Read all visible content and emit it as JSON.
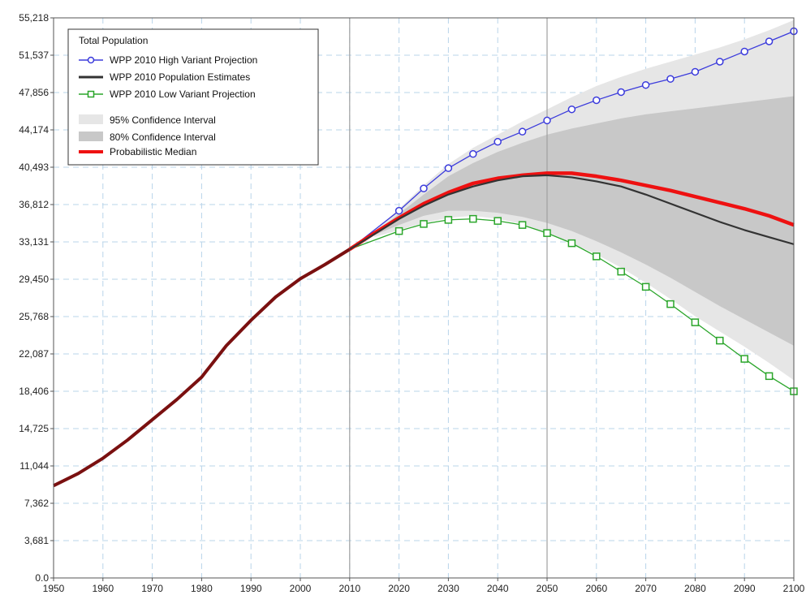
{
  "chart_data": {
    "type": "line",
    "legend": {
      "title": "Total Population",
      "placement": "top-left",
      "entries": [
        {
          "key": "high",
          "label": "WPP 2010 High Variant Projection",
          "color": "#3b3bdc",
          "marker": "circle"
        },
        {
          "key": "estimates",
          "label": "WPP 2010 Population Estimates",
          "color": "#333333",
          "marker": "none"
        },
        {
          "key": "low",
          "label": "WPP 2010 Low Variant Projection",
          "color": "#2aa52a",
          "marker": "square"
        },
        {
          "key": "ci95",
          "label": "95% Confidence Interval",
          "color": "#e6e6e6",
          "marker": "band"
        },
        {
          "key": "ci80",
          "label": "80% Confidence Interval",
          "color": "#c8c8c8",
          "marker": "band"
        },
        {
          "key": "median",
          "label": "Probabilistic Median",
          "color": "#ee1111",
          "marker": "none"
        }
      ]
    },
    "xlim": [
      1950,
      2100
    ],
    "ylim": [
      0,
      55218
    ],
    "x_ticks": [
      "1950",
      "1960",
      "1970",
      "1980",
      "1990",
      "2000",
      "2010",
      "2020",
      "2030",
      "2040",
      "2050",
      "2060",
      "2070",
      "2080",
      "2090",
      "2100"
    ],
    "y_ticks": [
      "0.0",
      "3,681",
      "7,362",
      "11,044",
      "14,725",
      "18,406",
      "22,087",
      "25,768",
      "29,450",
      "33,131",
      "36,812",
      "40,493",
      "44,174",
      "47,856",
      "51,537",
      "55,218"
    ],
    "grid": true,
    "reference_lines_x": [
      2010,
      2050
    ],
    "historical": {
      "x": [
        1950,
        1955,
        1960,
        1965,
        1970,
        1975,
        1980,
        1985,
        1990,
        1995,
        2000,
        2005,
        2010
      ],
      "y": [
        9100,
        10300,
        11800,
        13600,
        15600,
        17600,
        19800,
        22900,
        25400,
        27700,
        29500,
        30900,
        32400
      ]
    },
    "series": [
      {
        "key": "high",
        "name": "WPP 2010 High Variant Projection",
        "x": [
          2020,
          2025,
          2030,
          2035,
          2040,
          2045,
          2050,
          2055,
          2060,
          2065,
          2070,
          2075,
          2080,
          2085,
          2090,
          2095,
          2100
        ],
        "y": [
          36200,
          38400,
          40400,
          41800,
          43000,
          44000,
          45100,
          46200,
          47100,
          47900,
          48600,
          49200,
          49900,
          50900,
          51900,
          52900,
          53900
        ]
      },
      {
        "key": "low",
        "name": "WPP 2010 Low Variant Projection",
        "x": [
          2020,
          2025,
          2030,
          2035,
          2040,
          2045,
          2050,
          2055,
          2060,
          2065,
          2070,
          2075,
          2080,
          2085,
          2090,
          2095,
          2100
        ],
        "y": [
          34200,
          34900,
          35300,
          35400,
          35200,
          34800,
          34000,
          33000,
          31700,
          30200,
          28700,
          27000,
          25200,
          23400,
          21600,
          19900,
          18400
        ]
      },
      {
        "key": "estimates",
        "name": "WPP 2010 Population Estimates",
        "x": [
          2010,
          2015,
          2020,
          2025,
          2030,
          2035,
          2040,
          2045,
          2050,
          2055,
          2060,
          2065,
          2070,
          2075,
          2080,
          2085,
          2090,
          2095,
          2100
        ],
        "y": [
          32400,
          33900,
          35400,
          36700,
          37800,
          38600,
          39200,
          39600,
          39700,
          39500,
          39100,
          38600,
          37800,
          36900,
          36000,
          35100,
          34300,
          33600,
          32900
        ]
      },
      {
        "key": "median",
        "name": "Probabilistic Median",
        "x": [
          2010,
          2015,
          2020,
          2025,
          2030,
          2035,
          2040,
          2045,
          2050,
          2055,
          2060,
          2065,
          2070,
          2075,
          2080,
          2085,
          2090,
          2095,
          2100
        ],
        "y": [
          32400,
          34000,
          35500,
          36900,
          38000,
          38900,
          39400,
          39700,
          39900,
          39900,
          39600,
          39200,
          38700,
          38200,
          37600,
          37000,
          36400,
          35700,
          34800
        ]
      }
    ],
    "bands": [
      {
        "key": "ci95",
        "name": "95% Confidence Interval",
        "x": [
          2015,
          2020,
          2025,
          2030,
          2035,
          2040,
          2045,
          2050,
          2055,
          2060,
          2065,
          2070,
          2075,
          2080,
          2085,
          2090,
          2095,
          2100
        ],
        "upper": [
          34200,
          36400,
          38700,
          40800,
          42400,
          43700,
          45000,
          46200,
          47400,
          48500,
          49400,
          50200,
          50900,
          51600,
          52300,
          53100,
          54000,
          55000
        ],
        "lower": [
          33600,
          34300,
          35000,
          35500,
          35700,
          35400,
          34900,
          34000,
          33000,
          31900,
          30600,
          29100,
          27500,
          25800,
          24300,
          22800,
          21200,
          19500
        ]
      },
      {
        "key": "ci80",
        "name": "80% Confidence Interval",
        "x": [
          2015,
          2020,
          2025,
          2030,
          2035,
          2040,
          2045,
          2050,
          2055,
          2060,
          2065,
          2070,
          2075,
          2080,
          2085,
          2090,
          2095,
          2100
        ],
        "upper": [
          34000,
          35900,
          37800,
          39600,
          40900,
          42000,
          42900,
          43700,
          44300,
          44800,
          45300,
          45700,
          46000,
          46300,
          46600,
          46900,
          47200,
          47500
        ],
        "lower": [
          33800,
          34800,
          35700,
          36200,
          36200,
          36000,
          35600,
          35000,
          34200,
          33200,
          32100,
          30900,
          29600,
          28200,
          26800,
          25500,
          24200,
          22900
        ]
      }
    ]
  }
}
